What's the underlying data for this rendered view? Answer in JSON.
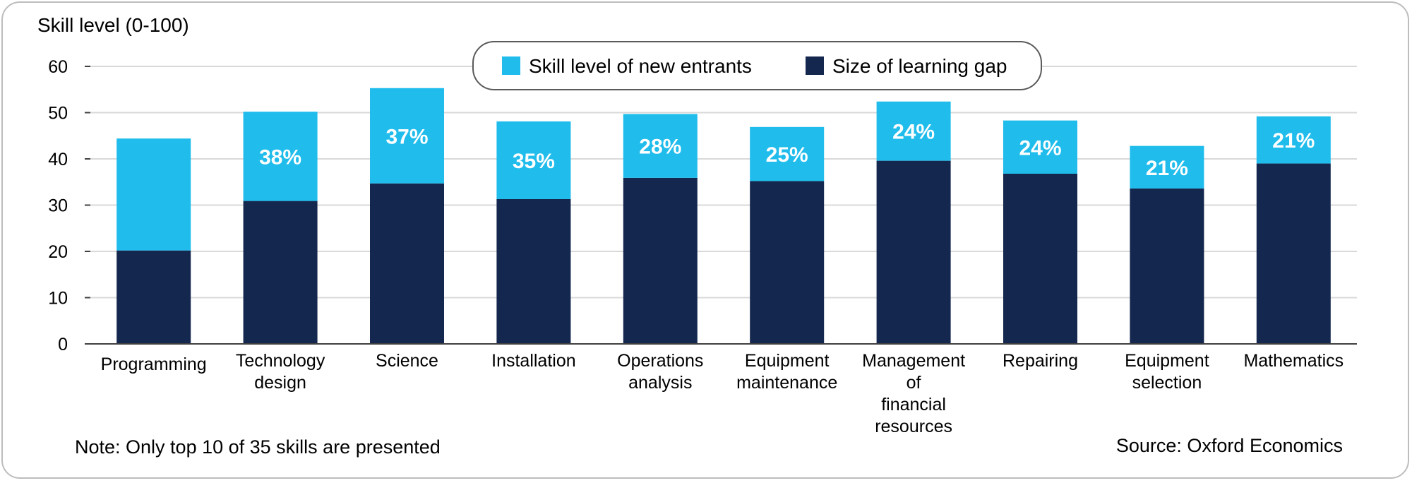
{
  "chart_data": {
    "type": "bar",
    "stacked": true,
    "ylabel": "Skill level (0-100)",
    "ylim": [
      0,
      60
    ],
    "yticks": [
      0,
      10,
      20,
      30,
      40,
      50,
      60
    ],
    "grid": true,
    "legend_position": "top-center",
    "categories": [
      [
        "Programming"
      ],
      [
        "Technology",
        "design"
      ],
      [
        "Science"
      ],
      [
        "Installation"
      ],
      [
        "Operations",
        "analysis"
      ],
      [
        "Equipment",
        "maintenance"
      ],
      [
        "Management",
        "of",
        "financial",
        "resources"
      ],
      [
        "Repairing"
      ],
      [
        "Equipment",
        "selection"
      ],
      [
        "Mathematics"
      ]
    ],
    "series": [
      {
        "name": "Size of learning gap",
        "color": "#14274e",
        "values": [
          20.2,
          30.9,
          34.7,
          31.3,
          35.9,
          35.2,
          39.6,
          36.8,
          33.6,
          39.0
        ]
      },
      {
        "name": "Skill level of new entrants",
        "color": "#1fbcec",
        "values": [
          24.2,
          19.3,
          20.6,
          16.8,
          13.8,
          11.7,
          12.8,
          11.5,
          9.2,
          10.2
        ]
      }
    ],
    "data_labels": [
      "",
      "38%",
      "37%",
      "35%",
      "28%",
      "25%",
      "24%",
      "24%",
      "21%",
      "21%"
    ],
    "note": "Note: Only top 10 of 35 skills are presented",
    "source": "Source: Oxford Economics"
  }
}
